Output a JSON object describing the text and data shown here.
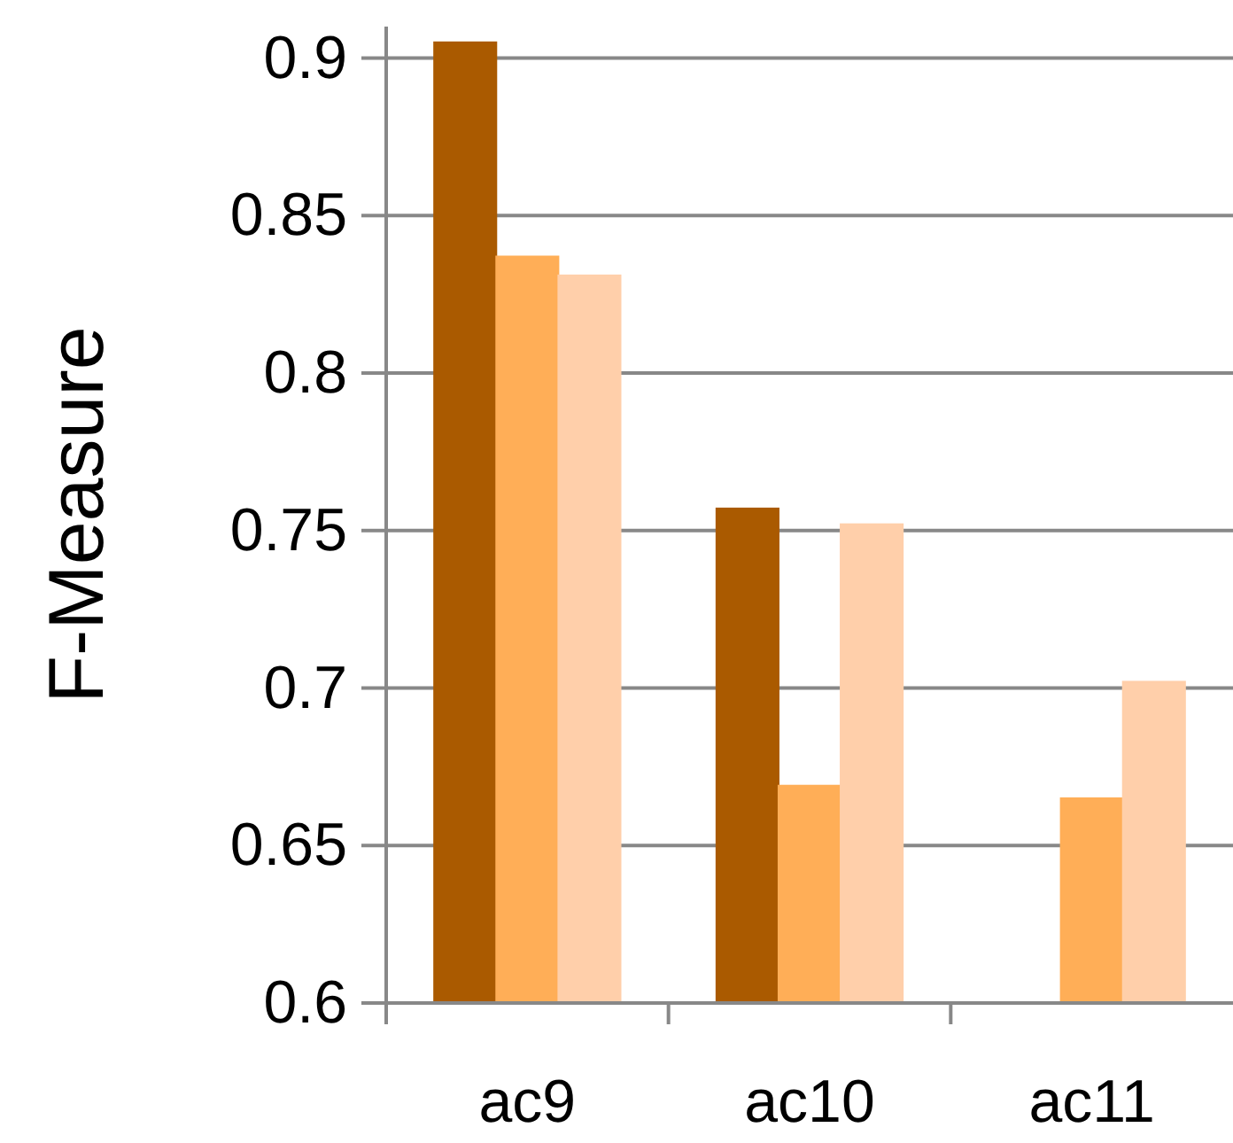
{
  "chart_data": {
    "type": "bar",
    "ylabel": "F-Measure",
    "categories": [
      "ac9",
      "ac10",
      "ac11"
    ],
    "series": [
      {
        "color": "#aa5a00",
        "values": [
          0.905,
          0.757,
          0.6
        ]
      },
      {
        "color": "#ffae57",
        "values": [
          0.837,
          0.669,
          0.665
        ]
      },
      {
        "color": "#ffcfaa",
        "values": [
          0.831,
          0.752,
          0.702
        ]
      }
    ],
    "ylim": [
      0.6,
      0.91
    ],
    "yticks": [
      0.6,
      0.65,
      0.7,
      0.75,
      0.8,
      0.85,
      0.9
    ],
    "grid": "y"
  }
}
